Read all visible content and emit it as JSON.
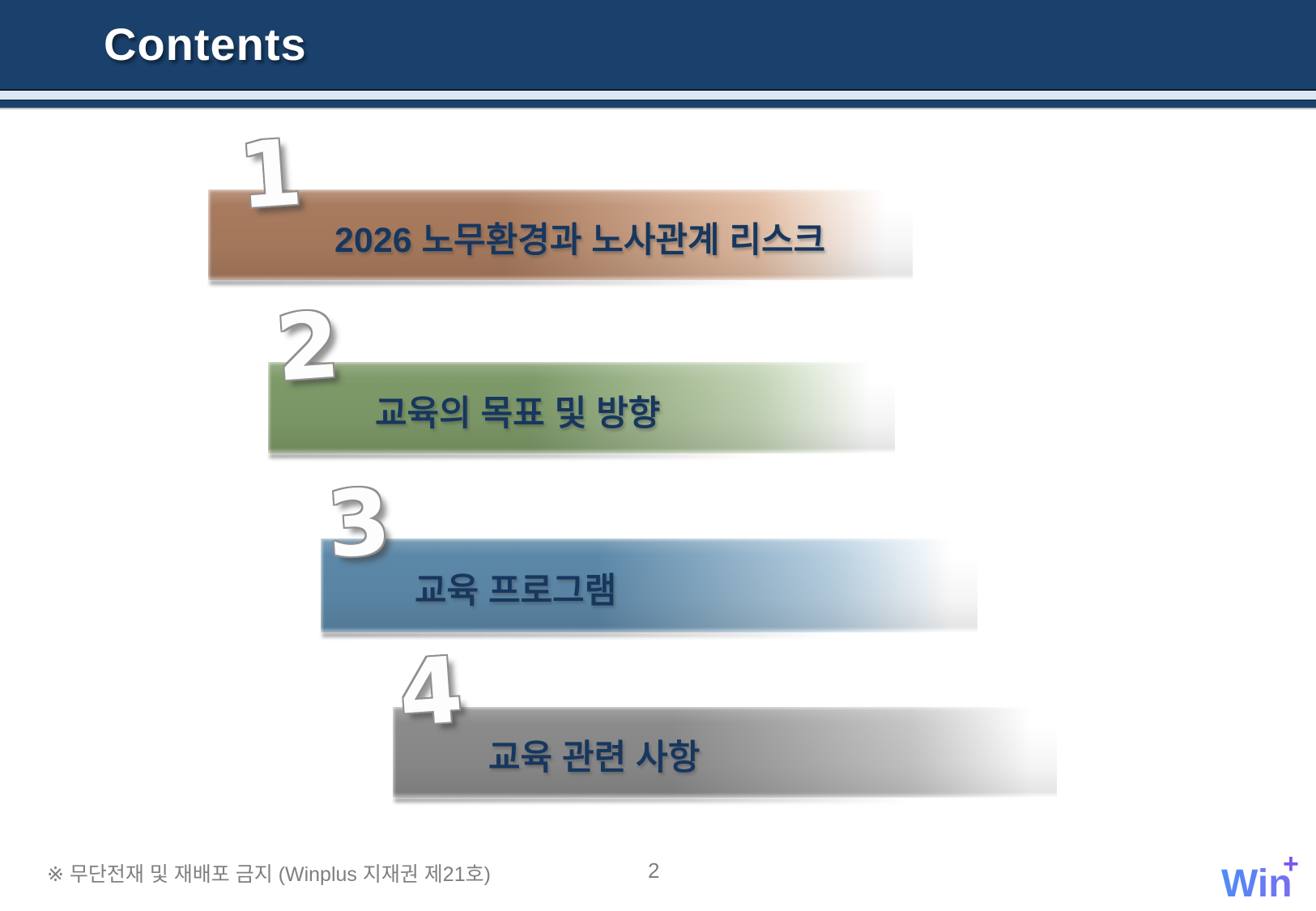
{
  "slide": {
    "title": "Contents",
    "page_number": "2",
    "footer_note": "※ 무단전재 및 재배포 금지 (Winplus 지재권 제21호)",
    "logo": {
      "text": "Win",
      "plus": "+"
    }
  },
  "toc_items": [
    {
      "number": "1",
      "label": "2026 노무환경과 노사관계 리스크",
      "color_left": "#A97B5E",
      "color_mid": "#E2BDA3"
    },
    {
      "number": "2",
      "label": "교육의 목표 및 방향",
      "color_left": "#7E9A69",
      "color_mid": "#C2D3B4"
    },
    {
      "number": "3",
      "label": "교육 프로그램",
      "color_left": "#5C88A8",
      "color_mid": "#B7CFE0"
    },
    {
      "number": "4",
      "label": "교육 관련 사항",
      "color_left": "#8B8B8B",
      "color_mid": "#C6C6C6"
    }
  ],
  "colors": {
    "header_bg": "#1A416C",
    "header_stripe_light": "#DCE7F4",
    "item_text": "#17375E",
    "footer_text": "#7F7F7F",
    "logo_blue": "#4D8DF6",
    "logo_purple": "#7C55F0"
  }
}
